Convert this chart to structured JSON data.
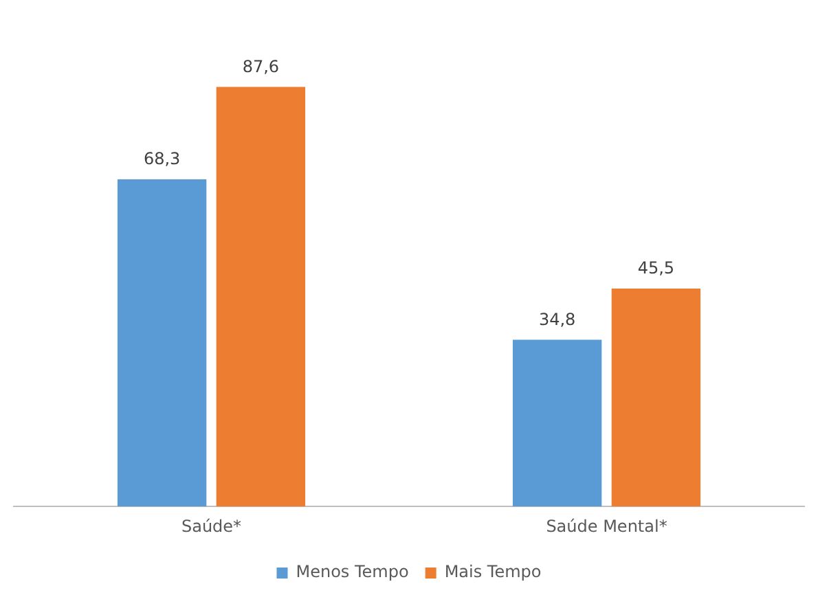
{
  "chart_data": {
    "type": "bar",
    "categories": [
      "Saúde*",
      "Saúde Mental*"
    ],
    "series": [
      {
        "name": "Menos Tempo",
        "color": "#5b9bd5",
        "values": [
          68.3,
          34.8
        ],
        "value_labels": [
          "68,3",
          "34,8"
        ]
      },
      {
        "name": "Mais Tempo",
        "color": "#ed7d31",
        "values": [
          87.6,
          45.5
        ],
        "value_labels": [
          "87,6",
          "45,5"
        ]
      }
    ],
    "legend": "bottom",
    "grid": false
  }
}
